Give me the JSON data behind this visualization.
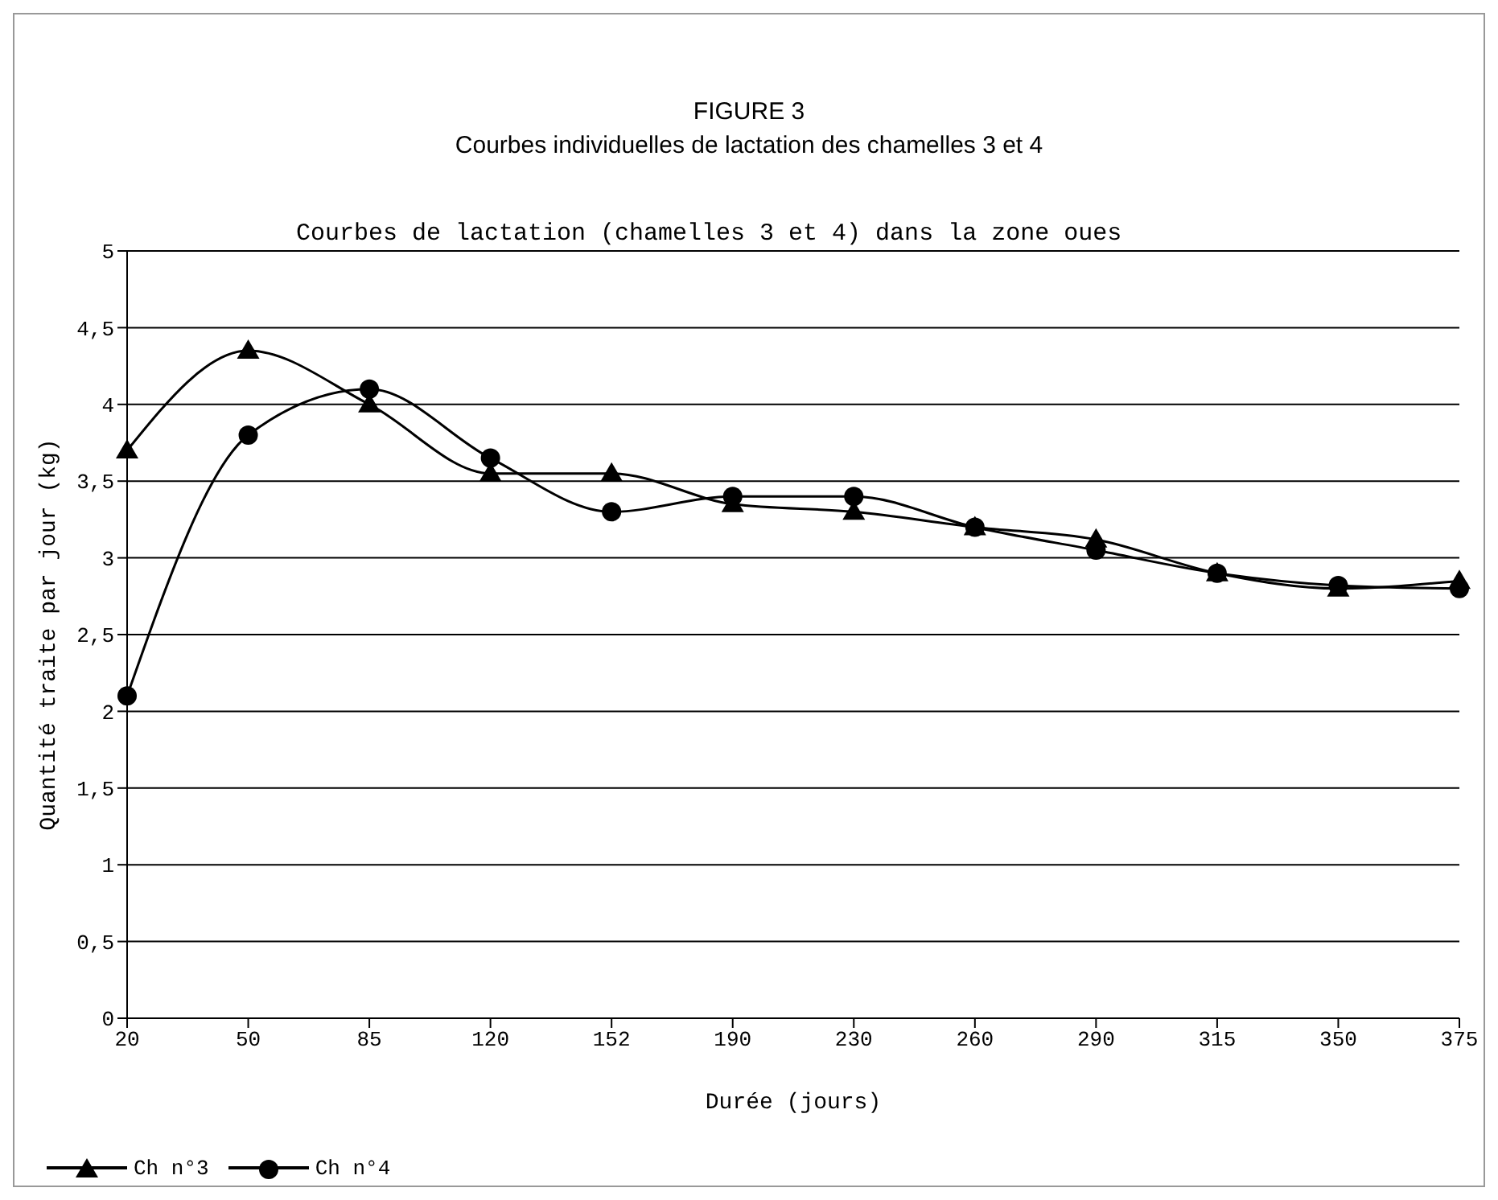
{
  "chart_data": {
    "type": "line",
    "title": "FIGURE 3",
    "subtitle": "Courbes individuelles de lactation des chamelles 3 et 4",
    "annotations": [
      "Courbes de lactation (chamelles 3 et 4) dans la zone oues"
    ],
    "xlabel": "Durée (jours)",
    "ylabel": "Quantité traite par jour (kg)",
    "categories": [
      "20",
      "50",
      "85",
      "120",
      "152",
      "190",
      "230",
      "260",
      "290",
      "315",
      "350",
      "375"
    ],
    "series": [
      {
        "name": "Ch n°3",
        "color": "#000000",
        "marker": "triangle",
        "values": [
          3.7,
          4.35,
          4.0,
          3.55,
          3.55,
          3.35,
          3.3,
          3.2,
          3.12,
          2.9,
          2.8,
          2.85
        ]
      },
      {
        "name": "Ch n°4",
        "color": "#000000",
        "marker": "circle",
        "values": [
          2.1,
          3.8,
          4.1,
          3.65,
          3.3,
          3.4,
          3.4,
          3.2,
          3.05,
          2.9,
          2.82,
          2.8
        ]
      }
    ],
    "ylim": [
      0,
      5
    ],
    "yticks": [
      {
        "value": 0,
        "label": "0"
      },
      {
        "value": 0.5,
        "label": "0,5"
      },
      {
        "value": 1,
        "label": "1"
      },
      {
        "value": 1.5,
        "label": "1,5"
      },
      {
        "value": 2,
        "label": "2"
      },
      {
        "value": 2.5,
        "label": "2,5"
      },
      {
        "value": 3,
        "label": "3"
      },
      {
        "value": 3.5,
        "label": "3,5"
      },
      {
        "value": 4,
        "label": "4"
      },
      {
        "value": 4.5,
        "label": "4,5"
      },
      {
        "value": 5,
        "label": "5"
      }
    ],
    "grid": "y",
    "legend": "bottom left"
  }
}
